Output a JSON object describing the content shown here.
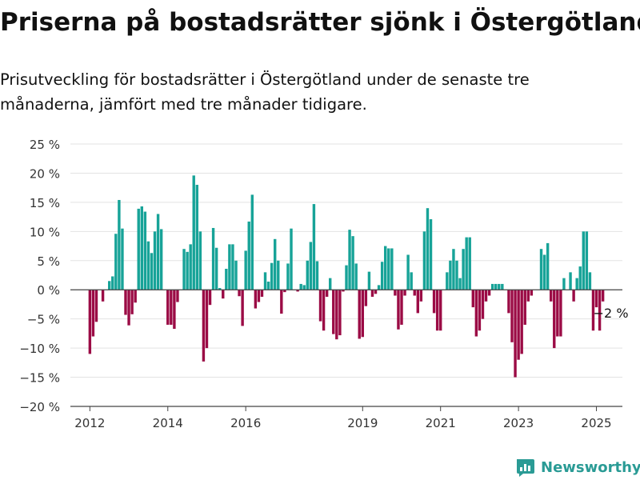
{
  "title": "Priserna på bostadsrätter sjönk i Östergötland",
  "subtitle": "Prisutveckling för bostadsrätter i Östergötland under de senaste tre månaderna, jämfört med tre månader tidigare.",
  "brand": "Newsworthy",
  "chart_data": {
    "type": "bar",
    "title": "Priserna på bostadsrätter sjönk i Östergötland",
    "subtitle": "Prisutveckling för bostadsrätter i Östergötland under de senaste tre månaderna, jämfört med tre månader tidigare.",
    "xlabel": "",
    "ylabel": "",
    "ylim": [
      -20,
      25
    ],
    "y_ticks": [
      25,
      20,
      15,
      10,
      5,
      0,
      -5,
      -10,
      -15,
      -20
    ],
    "y_tick_labels": [
      "25 %",
      "20 %",
      "15 %",
      "10 %",
      "5 %",
      "0 %",
      "−5 %",
      "−10 %",
      "−15 %",
      "−20 %"
    ],
    "x_range": [
      "2011-07",
      "2025-09"
    ],
    "x_tick_labels": [
      "2012",
      "2014",
      "2016",
      "2019",
      "2021",
      "2023",
      "2025"
    ],
    "x_tick_dates": [
      "2012-01",
      "2014-01",
      "2016-01",
      "2019-01",
      "2021-01",
      "2023-01",
      "2025-01"
    ],
    "grid": true,
    "legend": "none",
    "colors": {
      "positive": "#17a398",
      "negative": "#9b0b45"
    },
    "annotation": {
      "text": "−2 %",
      "date": "2025-03",
      "value": -2
    },
    "dates": [
      "2012-01",
      "2012-02",
      "2012-03",
      "2012-04",
      "2012-05",
      "2012-06",
      "2012-07",
      "2012-08",
      "2012-09",
      "2012-10",
      "2012-11",
      "2012-12",
      "2013-01",
      "2013-02",
      "2013-03",
      "2013-04",
      "2013-05",
      "2013-06",
      "2013-07",
      "2013-08",
      "2013-09",
      "2013-10",
      "2013-11",
      "2013-12",
      "2014-01",
      "2014-02",
      "2014-03",
      "2014-04",
      "2014-05",
      "2014-06",
      "2014-07",
      "2014-08",
      "2014-09",
      "2014-10",
      "2014-11",
      "2014-12",
      "2015-01",
      "2015-02",
      "2015-03",
      "2015-04",
      "2015-05",
      "2015-06",
      "2015-07",
      "2015-08",
      "2015-09",
      "2015-10",
      "2015-11",
      "2015-12",
      "2016-01",
      "2016-02",
      "2016-03",
      "2016-04",
      "2016-05",
      "2016-06",
      "2016-07",
      "2016-08",
      "2016-09",
      "2016-10",
      "2016-11",
      "2016-12",
      "2017-01",
      "2017-02",
      "2017-03",
      "2017-04",
      "2017-05",
      "2017-06",
      "2017-07",
      "2017-08",
      "2017-09",
      "2017-10",
      "2017-11",
      "2017-12",
      "2018-01",
      "2018-02",
      "2018-03",
      "2018-04",
      "2018-05",
      "2018-06",
      "2018-07",
      "2018-08",
      "2018-09",
      "2018-10",
      "2018-11",
      "2018-12",
      "2019-01",
      "2019-02",
      "2019-03",
      "2019-04",
      "2019-05",
      "2019-06",
      "2019-07",
      "2019-08",
      "2019-09",
      "2019-10",
      "2019-11",
      "2019-12",
      "2020-01",
      "2020-02",
      "2020-03",
      "2020-04",
      "2020-05",
      "2020-06",
      "2020-07",
      "2020-08",
      "2020-09",
      "2020-10",
      "2020-11",
      "2020-12",
      "2021-01",
      "2021-02",
      "2021-03",
      "2021-04",
      "2021-05",
      "2021-06",
      "2021-07",
      "2021-08",
      "2021-09",
      "2021-10",
      "2021-11",
      "2021-12",
      "2022-01",
      "2022-02",
      "2022-03",
      "2022-04",
      "2022-05",
      "2022-06",
      "2022-07",
      "2022-08",
      "2022-09",
      "2022-10",
      "2022-11",
      "2022-12",
      "2023-01",
      "2023-02",
      "2023-03",
      "2023-04",
      "2023-05",
      "2023-06",
      "2023-07",
      "2023-08",
      "2023-09",
      "2023-10",
      "2023-11",
      "2023-12",
      "2024-01",
      "2024-02",
      "2024-03",
      "2024-04",
      "2024-05",
      "2024-06",
      "2024-07",
      "2024-08",
      "2024-09",
      "2024-10",
      "2024-11",
      "2024-12",
      "2025-01",
      "2025-02",
      "2025-03"
    ],
    "values": [
      -11,
      -8,
      -5.5,
      0,
      -2,
      0,
      1.5,
      2.3,
      9.6,
      15.4,
      10.5,
      -4.3,
      -6.1,
      -4.2,
      -2.2,
      13.9,
      14.3,
      13.4,
      8.3,
      6.3,
      10,
      13,
      10.4,
      0,
      -6,
      -6,
      -6.7,
      -2.1,
      0,
      7,
      6.5,
      7.8,
      19.6,
      18,
      10,
      -12.3,
      -10,
      -2.6,
      10.6,
      7.2,
      0.3,
      -1.5,
      3.6,
      7.8,
      7.8,
      5,
      -1.1,
      -6.2,
      6.7,
      11.7,
      16.3,
      -3.2,
      -2.1,
      -1.2,
      3,
      1.4,
      4.6,
      8.7,
      5,
      -4.1,
      -0.4,
      4.5,
      10.5,
      0,
      -0.3,
      1,
      0.8,
      5,
      8.2,
      14.7,
      4.9,
      -5.4,
      -7,
      -1.2,
      2,
      -7.6,
      -8.5,
      -7.8,
      -0.3,
      4.2,
      10.3,
      9.2,
      4.5,
      -8.4,
      -8.1,
      -2.8,
      3.1,
      -1.2,
      -0.7,
      0.8,
      4.8,
      7.5,
      7.1,
      7.1,
      -1,
      -6.8,
      -6,
      -1,
      6,
      3,
      -1,
      -4,
      -2,
      10,
      14,
      12.1,
      -4,
      -7,
      -7,
      0,
      3,
      5,
      7,
      5,
      2,
      7,
      9,
      9,
      -3,
      -8,
      -7,
      -5,
      -2,
      -1,
      1,
      1,
      1,
      1,
      0,
      -4,
      -9,
      -15,
      -12,
      -11,
      -6,
      -2,
      -1,
      0,
      0,
      7,
      6,
      8,
      -2,
      -10,
      -8,
      -8,
      2,
      0,
      3,
      -2,
      2,
      4,
      10,
      10,
      3,
      -7,
      -3,
      -7,
      -2
    ]
  }
}
